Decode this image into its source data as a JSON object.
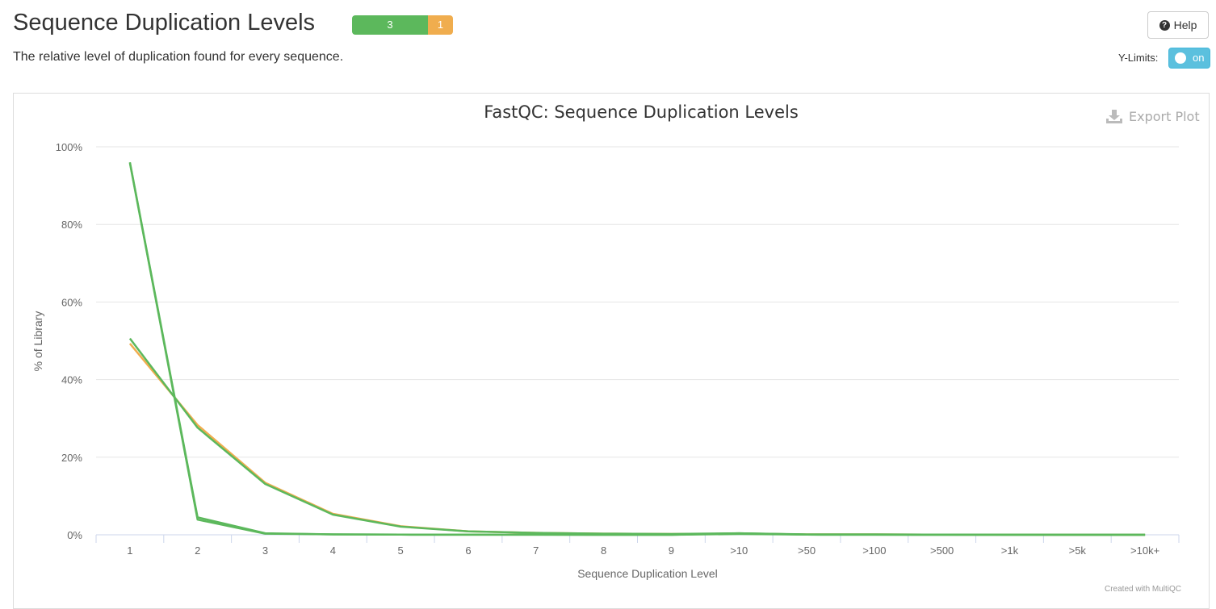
{
  "header": {
    "title": "Sequence Duplication Levels",
    "subtitle": "The relative level of duplication found for every sequence.",
    "status": {
      "pass": "3",
      "warn": "1"
    },
    "help_label": "Help",
    "ylimits_label": "Y-Limits:",
    "toggle_label": "on"
  },
  "plot": {
    "export_label": "Export Plot",
    "credits": "Created with MultiQC"
  },
  "colors": {
    "pass": "#5cb85c",
    "warn": "#f0ad4e",
    "toggle": "#5bc0de"
  },
  "chart_data": {
    "type": "line",
    "title": "FastQC: Sequence Duplication Levels",
    "xlabel": "Sequence Duplication Level",
    "ylabel": "% of Library",
    "ylim": [
      0,
      100
    ],
    "yticks": [
      "0%",
      "20%",
      "40%",
      "60%",
      "80%",
      "100%"
    ],
    "grid": true,
    "categories": [
      "1",
      "2",
      "3",
      "4",
      "5",
      "6",
      "7",
      "8",
      "9",
      ">10",
      ">50",
      ">100",
      ">500",
      ">1k",
      ">5k",
      ">10k+"
    ],
    "series": [
      {
        "color": "#f0ad4e",
        "values": [
          49.3,
          28.3,
          13.4,
          5.4,
          2.2,
          0.9,
          0.5,
          0.3,
          0.2,
          0.3,
          0.1,
          0.1,
          0.05,
          0.02,
          0.01,
          0.01
        ]
      },
      {
        "color": "#5cb85c",
        "values": [
          50.6,
          27.6,
          13.1,
          5.2,
          2.1,
          0.9,
          0.5,
          0.3,
          0.2,
          0.4,
          0.1,
          0.1,
          0.05,
          0.02,
          0.01,
          0.01
        ]
      },
      {
        "color": "#5cb85c",
        "values": [
          96.0,
          4.5,
          0.4,
          0.1,
          0.05,
          0.03,
          0.02,
          0.01,
          0.01,
          0.2,
          0.05,
          0.02,
          0.01,
          0.01,
          0.01,
          0.01
        ]
      },
      {
        "color": "#5cb85c",
        "values": [
          95.8,
          3.9,
          0.3,
          0.1,
          0.05,
          0.03,
          0.02,
          0.01,
          0.01,
          0.4,
          0.05,
          0.02,
          0.01,
          0.01,
          0.01,
          0.01
        ]
      }
    ]
  }
}
